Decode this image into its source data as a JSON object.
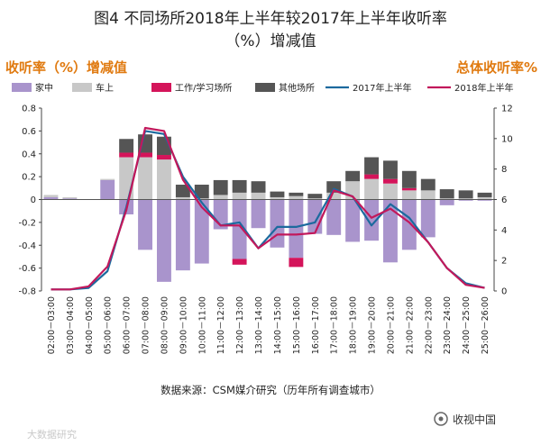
{
  "title_line1": "图4 不同场所2018年上半年较2017年上半年收听率",
  "title_line2": "（%）增减值",
  "left_label": "收听率（%）增减值",
  "right_label": "总体收听率%",
  "source": "数据来源：CSM媒介研究（历年所有调查城市）",
  "watermark": "大数据研究",
  "brand": "收视中国",
  "colors": {
    "home": "#a994cc",
    "car": "#c8c8c8",
    "work": "#d4145a",
    "other": "#555555",
    "line2017": "#1c6a9e",
    "line2018": "#c2185b"
  },
  "chart_data": {
    "type": "bar",
    "categories": [
      "02:00－03:00",
      "03:00－04:00",
      "04:00－05:00",
      "05:00－06:00",
      "06:00－07:00",
      "07:00－08:00",
      "08:00－09:00",
      "09:00－10:00",
      "10:00－11:00",
      "11:00－12:00",
      "12:00－13:00",
      "13:00－14:00",
      "14:00－15:00",
      "15:00－16:00",
      "16:00－17:00",
      "17:00－18:00",
      "18:00－19:00",
      "19:00－20:00",
      "20:00－21:00",
      "21:00－22:00",
      "22:00－23:00",
      "23:00－24:00",
      "24:00－25:00",
      "25:00－26:00"
    ],
    "ylim": [
      -0.8,
      0.8
    ],
    "yticks": [
      -0.8,
      -0.6,
      -0.4,
      -0.2,
      0,
      0.2,
      0.4,
      0.6,
      0.8
    ],
    "y2lim": [
      0,
      12
    ],
    "y2ticks": [
      0,
      2,
      4,
      6,
      8,
      10,
      12
    ],
    "bar_series": [
      {
        "name": "家中",
        "key": "home",
        "values": [
          0.02,
          0.01,
          0.0,
          0.17,
          -0.13,
          -0.44,
          -0.72,
          -0.62,
          -0.56,
          -0.26,
          -0.52,
          -0.25,
          -0.42,
          -0.51,
          -0.3,
          -0.31,
          -0.37,
          -0.36,
          -0.55,
          -0.44,
          -0.33,
          -0.05,
          -0.01,
          -0.01
        ]
      },
      {
        "name": "车上",
        "key": "car",
        "values": [
          0.02,
          0.01,
          0.0,
          0.01,
          0.37,
          0.37,
          0.35,
          0.02,
          0.01,
          0.04,
          0.06,
          0.06,
          0.02,
          0.03,
          0.01,
          0.06,
          0.16,
          0.18,
          0.14,
          0.08,
          0.08,
          0.01,
          0.01,
          0.02
        ]
      },
      {
        "name": "工作/学习场所",
        "key": "work",
        "values": [
          0.0,
          0.0,
          0.0,
          0.0,
          0.04,
          0.04,
          0.04,
          0.0,
          0.0,
          0.0,
          -0.05,
          0.0,
          0.0,
          -0.08,
          0.0,
          0.0,
          0.0,
          0.04,
          0.04,
          0.02,
          0.0,
          0.0,
          0.0,
          0.0
        ]
      },
      {
        "name": "其他场所",
        "key": "other",
        "values": [
          0.0,
          0.0,
          0.0,
          0.0,
          0.12,
          0.16,
          0.16,
          0.11,
          0.12,
          0.13,
          0.11,
          0.1,
          0.05,
          0.03,
          0.04,
          0.1,
          0.09,
          0.15,
          0.16,
          0.15,
          0.1,
          0.08,
          0.07,
          0.04
        ]
      }
    ],
    "line_series": [
      {
        "name": "2017年上半年",
        "key": "line2017",
        "values": [
          0.1,
          0.1,
          0.2,
          1.3,
          5.5,
          10.5,
          10.3,
          7.5,
          5.8,
          4.3,
          4.5,
          2.8,
          4.2,
          4.2,
          4.5,
          6.7,
          6.2,
          4.3,
          5.7,
          4.8,
          3.2,
          1.5,
          0.5,
          0.2
        ]
      },
      {
        "name": "2018年上半年",
        "key": "line2018",
        "values": [
          0.1,
          0.1,
          0.3,
          1.6,
          5.3,
          10.7,
          10.5,
          7.3,
          5.5,
          4.3,
          4.3,
          2.8,
          3.7,
          3.7,
          3.8,
          6.6,
          6.2,
          4.8,
          5.4,
          4.5,
          3.2,
          1.5,
          0.4,
          0.2
        ]
      }
    ]
  }
}
